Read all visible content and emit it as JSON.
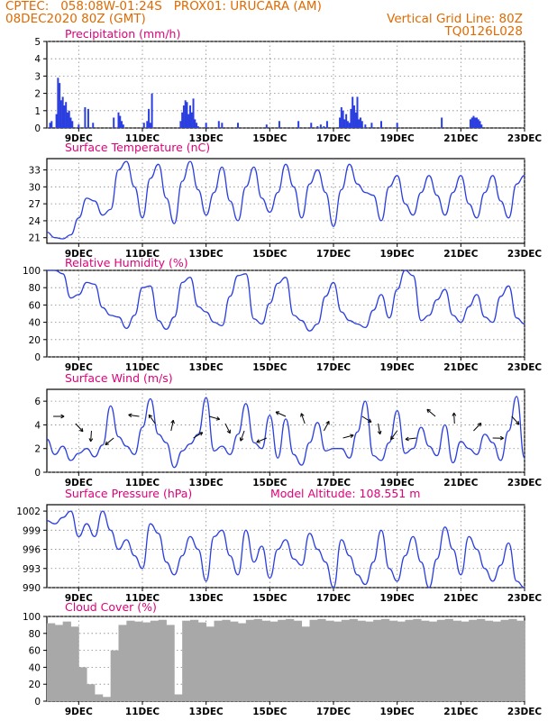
{
  "header": {
    "line1": "CPTEC:   058:08W-01:24S   PROX01: URUCARA (AM)",
    "line2_left": "08DEC2020 80Z (GMT)",
    "line2_right": "Vertical Grid Line: 80Z",
    "line3_right": "TQ0126L028"
  },
  "colors": {
    "header": "#e06a00",
    "title": "#e0007a",
    "line": "#2b3fe0",
    "cloud": "#a8a8a8",
    "grid": "#888888"
  },
  "x_ticks": [
    "9DEC",
    "11DEC",
    "13DEC",
    "15DEC",
    "17DEC",
    "19DEC",
    "21DEC",
    "23DEC"
  ],
  "chart_data": [
    {
      "type": "bar",
      "title": "Precipitation (mm/h)",
      "ylim": [
        0,
        5
      ],
      "yticks": [
        0,
        1,
        2,
        3,
        4,
        5
      ],
      "x_unit": "days from 08DEC2020 00Z",
      "x": [
        0.1,
        0.15,
        0.3,
        0.35,
        0.4,
        0.45,
        0.5,
        0.55,
        0.6,
        0.65,
        0.7,
        0.75,
        0.8,
        1.0,
        1.2,
        1.3,
        1.45,
        2.1,
        2.25,
        2.3,
        2.35,
        2.4,
        3.05,
        3.15,
        3.2,
        3.25,
        3.3,
        4.2,
        4.25,
        4.3,
        4.35,
        4.4,
        4.45,
        4.5,
        4.55,
        4.6,
        4.65,
        4.7,
        4.75,
        5.0,
        5.4,
        5.5,
        6.0,
        6.9,
        7.3,
        7.9,
        8.3,
        8.5,
        8.6,
        8.7,
        8.8,
        9.2,
        9.25,
        9.3,
        9.35,
        9.4,
        9.45,
        9.5,
        9.55,
        9.6,
        9.65,
        9.7,
        9.75,
        9.8,
        9.85,
        9.9,
        10.0,
        10.2,
        10.5,
        11.0,
        12.4,
        13.3,
        13.35,
        13.4,
        13.45,
        13.5,
        13.55,
        13.6,
        13.65
      ],
      "values": [
        0.3,
        0.4,
        0.8,
        2.9,
        2.6,
        1.6,
        1.8,
        1.3,
        1.5,
        0.9,
        1.0,
        0.6,
        0.4,
        0.2,
        1.2,
        1.1,
        0.3,
        0.6,
        0.9,
        0.7,
        0.4,
        0.2,
        0.3,
        0.4,
        1.1,
        0.3,
        2.0,
        0.4,
        0.9,
        1.3,
        1.6,
        1.5,
        0.8,
        1.3,
        0.9,
        1.7,
        0.5,
        0.3,
        0.1,
        0.3,
        0.4,
        0.3,
        0.3,
        0.2,
        0.4,
        0.4,
        0.3,
        0.1,
        0.2,
        0.1,
        0.4,
        0.6,
        1.2,
        1.0,
        0.5,
        0.8,
        0.4,
        0.3,
        1.1,
        1.8,
        1.3,
        0.9,
        1.8,
        0.5,
        0.6,
        0.4,
        0.2,
        0.3,
        0.4,
        0.3,
        0.6,
        0.5,
        0.6,
        0.7,
        0.6,
        0.6,
        0.5,
        0.4,
        0.2
      ]
    },
    {
      "type": "line",
      "title": "Surface Temperature (nC)",
      "ylim": [
        20,
        35
      ],
      "yticks": [
        21,
        24,
        27,
        30,
        33
      ],
      "x": [
        0,
        0.25,
        0.5,
        0.75,
        1.0,
        1.25,
        1.5,
        1.75,
        2.0,
        2.25,
        2.5,
        2.75,
        3.0,
        3.25,
        3.5,
        3.75,
        4.0,
        4.25,
        4.5,
        4.75,
        5.0,
        5.25,
        5.5,
        5.75,
        6.0,
        6.25,
        6.5,
        6.75,
        7.0,
        7.25,
        7.5,
        7.75,
        8.0,
        8.25,
        8.5,
        8.75,
        9.0,
        9.25,
        9.5,
        9.75,
        10.0,
        10.25,
        10.5,
        10.75,
        11.0,
        11.25,
        11.5,
        11.75,
        12.0,
        12.25,
        12.5,
        12.75,
        13.0,
        13.25,
        13.5,
        13.75,
        14.0,
        14.25,
        14.5,
        14.75,
        15.0
      ],
      "values": [
        22.0,
        21.0,
        20.8,
        21.5,
        24.5,
        28.0,
        27.5,
        25.0,
        26.0,
        33.0,
        34.5,
        30.0,
        24.5,
        31.5,
        34.0,
        28.0,
        23.5,
        31.0,
        34.5,
        29.5,
        25.0,
        29.0,
        33.5,
        27.5,
        24.0,
        30.0,
        33.5,
        28.0,
        25.5,
        29.0,
        34.0,
        30.0,
        24.5,
        30.5,
        33.0,
        29.0,
        23.0,
        29.5,
        34.0,
        30.5,
        29.0,
        28.5,
        24.0,
        30.0,
        32.0,
        27.0,
        25.0,
        29.0,
        32.0,
        28.5,
        25.0,
        29.0,
        32.0,
        27.0,
        24.5,
        29.0,
        32.0,
        27.5,
        24.5,
        30.5,
        32.0
      ]
    },
    {
      "type": "line",
      "title": "Relative Humidity (%)",
      "ylim": [
        0,
        100
      ],
      "yticks": [
        0,
        20,
        40,
        60,
        80,
        100
      ],
      "x": [
        0,
        0.25,
        0.5,
        0.75,
        1.0,
        1.25,
        1.5,
        1.75,
        2.0,
        2.25,
        2.5,
        2.75,
        3.0,
        3.25,
        3.5,
        3.75,
        4.0,
        4.25,
        4.5,
        4.75,
        5.0,
        5.25,
        5.5,
        5.75,
        6.0,
        6.25,
        6.5,
        6.75,
        7.0,
        7.25,
        7.5,
        7.75,
        8.0,
        8.25,
        8.5,
        8.75,
        9.0,
        9.25,
        9.5,
        9.75,
        10.0,
        10.25,
        10.5,
        10.75,
        11.0,
        11.25,
        11.5,
        11.75,
        12.0,
        12.25,
        12.5,
        12.75,
        13.0,
        13.25,
        13.5,
        13.75,
        14.0,
        14.25,
        14.5,
        14.75,
        15.0
      ],
      "values": [
        100,
        100,
        96,
        68,
        72,
        86,
        84,
        57,
        48,
        46,
        33,
        48,
        80,
        82,
        42,
        32,
        46,
        86,
        92,
        58,
        52,
        40,
        36,
        70,
        94,
        96,
        44,
        38,
        62,
        85,
        92,
        48,
        42,
        30,
        38,
        70,
        86,
        52,
        42,
        38,
        34,
        54,
        72,
        45,
        78,
        100,
        94,
        42,
        48,
        66,
        78,
        48,
        40,
        58,
        72,
        46,
        40,
        70,
        82,
        45,
        38
      ]
    },
    {
      "type": "line",
      "title": "Surface Wind (m/s)",
      "ylim": [
        0,
        7
      ],
      "yticks": [
        0,
        2,
        4,
        6
      ],
      "x": [
        0,
        0.25,
        0.5,
        0.75,
        1.0,
        1.25,
        1.5,
        1.75,
        2.0,
        2.25,
        2.5,
        2.75,
        3.0,
        3.25,
        3.5,
        3.75,
        4.0,
        4.25,
        4.5,
        4.75,
        5.0,
        5.25,
        5.5,
        5.75,
        6.0,
        6.25,
        6.5,
        6.75,
        7.0,
        7.25,
        7.5,
        7.75,
        8.0,
        8.25,
        8.5,
        8.75,
        9.0,
        9.25,
        9.5,
        9.75,
        10.0,
        10.25,
        10.5,
        10.75,
        11.0,
        11.25,
        11.5,
        11.75,
        12.0,
        12.25,
        12.5,
        12.75,
        13.0,
        13.25,
        13.5,
        13.75,
        14.0,
        14.25,
        14.5,
        14.75,
        15.0
      ],
      "values": [
        2.8,
        1.5,
        2.2,
        1.0,
        1.6,
        2.0,
        1.3,
        2.3,
        5.6,
        3.0,
        2.2,
        1.5,
        3.8,
        6.2,
        3.2,
        2.5,
        0.4,
        1.8,
        2.4,
        3.2,
        6.3,
        1.8,
        2.2,
        1.5,
        3.2,
        5.8,
        2.5,
        2.0,
        4.8,
        1.2,
        4.5,
        1.5,
        0.6,
        2.5,
        4.2,
        1.8,
        2.0,
        2.0,
        1.2,
        3.4,
        6.0,
        1.4,
        1.0,
        2.5,
        5.2,
        1.6,
        2.0,
        3.8,
        2.2,
        1.4,
        4.0,
        0.8,
        2.6,
        2.0,
        1.5,
        3.2,
        2.5,
        1.0,
        3.5,
        6.4,
        1.2
      ]
    },
    {
      "type": "line",
      "title": "Surface Pressure (hPa)",
      "subtitle": "Model Altitude: 108.551  m",
      "ylim": [
        990,
        1003
      ],
      "yticks": [
        990,
        993,
        996,
        999,
        1002
      ],
      "x": [
        0,
        0.25,
        0.5,
        0.75,
        1.0,
        1.25,
        1.5,
        1.75,
        2.0,
        2.25,
        2.5,
        2.75,
        3.0,
        3.25,
        3.5,
        3.75,
        4.0,
        4.25,
        4.5,
        4.75,
        5.0,
        5.25,
        5.5,
        5.75,
        6.0,
        6.25,
        6.5,
        6.75,
        7.0,
        7.25,
        7.5,
        7.75,
        8.0,
        8.25,
        8.5,
        8.75,
        9.0,
        9.25,
        9.5,
        9.75,
        10.0,
        10.25,
        10.5,
        10.75,
        11.0,
        11.25,
        11.5,
        11.75,
        12.0,
        12.25,
        12.5,
        12.75,
        13.0,
        13.25,
        13.5,
        13.75,
        14.0,
        14.25,
        14.5,
        14.75,
        15.0
      ],
      "values": [
        1000.5,
        1000.0,
        1001.0,
        1002.0,
        998.0,
        1000.0,
        998.0,
        1002.0,
        999.0,
        996.0,
        997.5,
        995.0,
        993.0,
        1000.0,
        998.5,
        994.0,
        992.0,
        995.0,
        998.0,
        996.0,
        991.0,
        998.0,
        999.0,
        995.0,
        992.0,
        999.0,
        994.0,
        996.5,
        991.5,
        996.0,
        997.5,
        994.5,
        993.5,
        998.5,
        996.0,
        994.0,
        990.0,
        997.5,
        995.0,
        992.0,
        990.5,
        994.0,
        999.0,
        993.0,
        991.0,
        995.0,
        998.0,
        994.0,
        990.0,
        994.5,
        999.5,
        996.0,
        992.0,
        998.0,
        996.0,
        993.0,
        991.0,
        993.5,
        997.0,
        991.0,
        990.0
      ]
    },
    {
      "type": "area",
      "title": "Cloud Cover (%)",
      "ylim": [
        0,
        100
      ],
      "yticks": [
        0,
        20,
        40,
        60,
        80,
        100
      ],
      "x": [
        0,
        0.25,
        0.5,
        0.75,
        1.0,
        1.25,
        1.5,
        1.75,
        2.0,
        2.25,
        2.5,
        2.75,
        3.0,
        3.25,
        3.5,
        3.75,
        4.0,
        4.25,
        4.5,
        4.75,
        5.0,
        5.25,
        5.5,
        5.75,
        6.0,
        6.25,
        6.5,
        6.75,
        7.0,
        7.25,
        7.5,
        7.75,
        8.0,
        8.25,
        8.5,
        8.75,
        9.0,
        9.25,
        9.5,
        9.75,
        10.0,
        10.25,
        10.5,
        10.75,
        11.0,
        11.25,
        11.5,
        11.75,
        12.0,
        12.25,
        12.5,
        12.75,
        13.0,
        13.25,
        13.5,
        13.75,
        14.0,
        14.25,
        14.5,
        14.75,
        15.0
      ],
      "values": [
        92,
        90,
        94,
        88,
        40,
        20,
        8,
        5,
        60,
        90,
        95,
        94,
        93,
        95,
        96,
        90,
        8,
        95,
        96,
        93,
        88,
        95,
        96,
        94,
        92,
        96,
        97,
        95,
        94,
        96,
        97,
        95,
        88,
        96,
        97,
        95,
        94,
        96,
        97,
        95,
        94,
        96,
        97,
        95,
        94,
        96,
        97,
        95,
        94,
        96,
        97,
        95,
        94,
        96,
        97,
        95,
        94,
        96,
        97,
        95,
        96
      ]
    }
  ]
}
